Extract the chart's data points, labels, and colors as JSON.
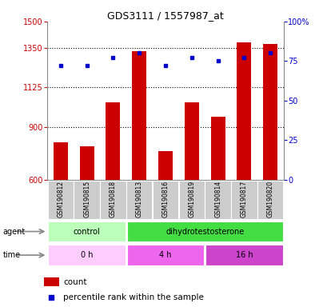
{
  "title": "GDS3111 / 1557987_at",
  "samples": [
    "GSM190812",
    "GSM190815",
    "GSM190818",
    "GSM190813",
    "GSM190816",
    "GSM190819",
    "GSM190814",
    "GSM190817",
    "GSM190820"
  ],
  "counts": [
    810,
    790,
    1040,
    1330,
    760,
    1040,
    960,
    1380,
    1370
  ],
  "percentiles": [
    72,
    72,
    77,
    80,
    72,
    77,
    75,
    77,
    80
  ],
  "ylim_left": [
    600,
    1500
  ],
  "yticks_left": [
    600,
    900,
    1125,
    1350,
    1500
  ],
  "ylim_right": [
    0,
    100
  ],
  "yticks_right": [
    0,
    25,
    50,
    75,
    100
  ],
  "yticklabels_right": [
    "0",
    "25",
    "50",
    "75",
    "100%"
  ],
  "bar_color": "#cc0000",
  "dot_color": "#0000cc",
  "agent_groups": [
    {
      "label": "control",
      "start": 0,
      "end": 3,
      "color": "#bbffbb"
    },
    {
      "label": "dihydrotestosterone",
      "start": 3,
      "end": 9,
      "color": "#44dd44"
    }
  ],
  "time_groups": [
    {
      "label": "0 h",
      "start": 0,
      "end": 3,
      "color": "#ffccff"
    },
    {
      "label": "4 h",
      "start": 3,
      "end": 6,
      "color": "#ee66ee"
    },
    {
      "label": "16 h",
      "start": 6,
      "end": 9,
      "color": "#cc44cc"
    }
  ],
  "background_color": "#ffffff",
  "label_color_left": "#cc0000",
  "label_color_right": "#0000cc",
  "xlabel_row_bg": "#cccccc",
  "grid_yticks": [
    900,
    1125,
    1350
  ]
}
